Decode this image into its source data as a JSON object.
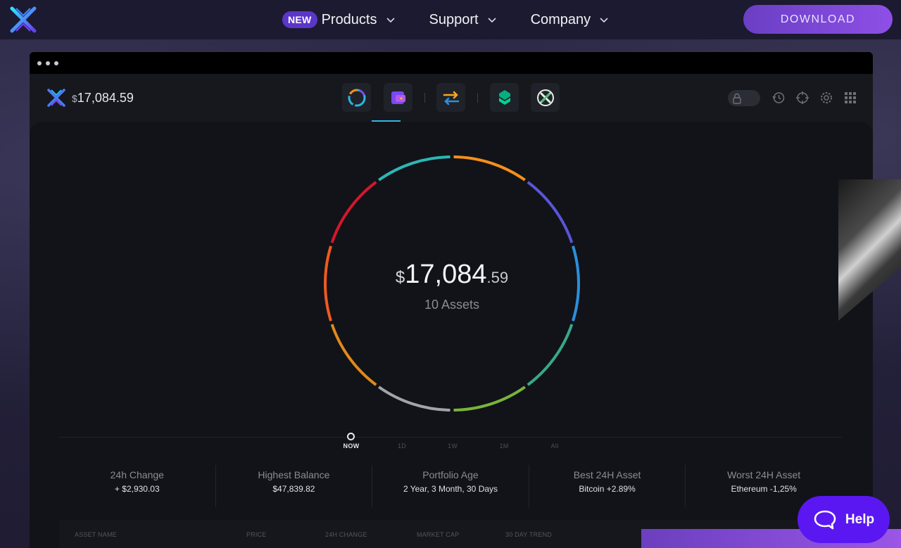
{
  "nav": {
    "new_badge": "NEW",
    "items": [
      {
        "label": "Products"
      },
      {
        "label": "Support"
      },
      {
        "label": "Company"
      }
    ],
    "download_label": "DOWNLOAD"
  },
  "app": {
    "header_currency": "$",
    "header_balance": "17,084.59",
    "center_currency": "$",
    "center_integer": "17,084",
    "center_decimal": ".59",
    "asset_count": "10 Assets"
  },
  "timeline": {
    "labels": [
      "NOW",
      "1D",
      "1W",
      "1M",
      "All"
    ],
    "selected": "NOW"
  },
  "stats": [
    {
      "label": "24h Change",
      "value": "+ $2,930.03"
    },
    {
      "label": "Highest Balance",
      "value": "$47,839.82"
    },
    {
      "label": "Portfolio Age",
      "value": "2 Year, 3 Month, 30 Days"
    },
    {
      "label": "Best 24H Asset",
      "value": "Bitcoin +2.89%"
    },
    {
      "label": "Worst 24H Asset",
      "value": "Ethereum -1,25%"
    }
  ],
  "table": {
    "headers": [
      "ASSET NAME",
      "PRICE",
      "24H CHANGE",
      "MARKET CAP",
      "30 DAY TREND"
    ]
  },
  "help": {
    "label": "Help"
  },
  "icons": {
    "logo": "exodus-x-logo",
    "tabs": [
      "portfolio-icon",
      "wallet-icon",
      "exchange-icon",
      "compound-app-icon",
      "xo-app-icon"
    ],
    "utils": [
      "lock-toggle-icon",
      "history-icon",
      "crosshair-icon",
      "gear-icon",
      "grid-icon"
    ]
  },
  "colors": {
    "accent": "#5a17f2",
    "nav_bg": "#1c1a30",
    "app_bg": "#111318",
    "donut_segments": [
      "#f58f1b",
      "#5a55d6",
      "#2b8fdd",
      "#3aa78a",
      "#79b43a",
      "#a4a4a8",
      "#e08a19",
      "#ef5a1f",
      "#d3172c",
      "#2bb6b6"
    ]
  }
}
